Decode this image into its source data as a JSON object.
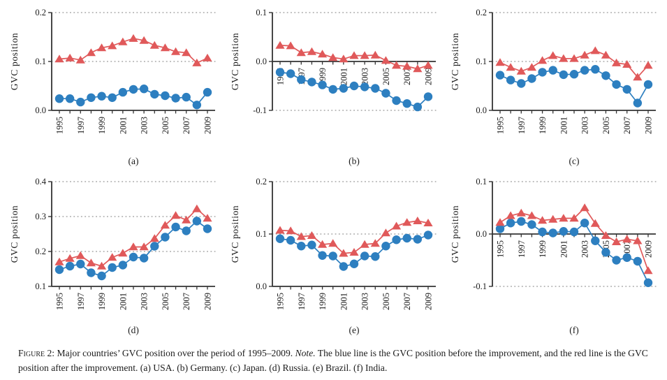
{
  "caption": {
    "label": "Figure 2:",
    "body": "Major countries’ GVC position over the period of 1995–2009.",
    "note_label": "Note.",
    "note_body": "The blue line is the GVC position before the improvement, and the red line is the GVC position after the improvement.",
    "panel_list": "(a) USA. (b) Germany. (c) Japan. (d) Russia. (e) Brazil. (f) India."
  },
  "colors": {
    "red": "#e0595a",
    "blue": "#2d7fc0",
    "axis": "#333333",
    "grid": "#959595",
    "text": "#1b1b1b"
  },
  "chart_data": [
    {
      "type": "line",
      "panel": "(a)",
      "country": "USA",
      "ylabel": "GVC position",
      "x": [
        1995,
        1996,
        1997,
        1998,
        1999,
        2000,
        2001,
        2002,
        2003,
        2004,
        2005,
        2006,
        2007,
        2008,
        2009
      ],
      "x_tick_labels": [
        "1995",
        "1997",
        "1999",
        "2001",
        "2003",
        "2005",
        "2007",
        "2009"
      ],
      "ylim": [
        0,
        0.2
      ],
      "yticks": [
        0,
        0.1,
        0.2
      ],
      "ytick_labels": [
        "0.0",
        "0.1",
        "0.2"
      ],
      "x_axis_at": 0,
      "grid": "dotted",
      "legend": "none",
      "series": [
        {
          "name": "GVC position after the improvement",
          "marker": "triangle",
          "color": "red",
          "values": [
            0.105,
            0.107,
            0.103,
            0.118,
            0.128,
            0.132,
            0.14,
            0.147,
            0.143,
            0.133,
            0.128,
            0.12,
            0.118,
            0.097,
            0.107
          ]
        },
        {
          "name": "GVC position before the improvement",
          "marker": "circle",
          "color": "blue",
          "values": [
            0.024,
            0.024,
            0.017,
            0.026,
            0.029,
            0.026,
            0.037,
            0.043,
            0.044,
            0.033,
            0.03,
            0.025,
            0.027,
            0.011,
            0.037
          ]
        }
      ]
    },
    {
      "type": "line",
      "panel": "(b)",
      "country": "Germany",
      "ylabel": "GVC position",
      "x": [
        1995,
        1996,
        1997,
        1998,
        1999,
        2000,
        2001,
        2002,
        2003,
        2004,
        2005,
        2006,
        2007,
        2008,
        2009
      ],
      "x_tick_labels": [
        "1995",
        "1997",
        "1999",
        "2001",
        "2003",
        "2005",
        "2007",
        "2009"
      ],
      "ylim": [
        -0.1,
        0.1
      ],
      "yticks": [
        -0.1,
        0,
        0.1
      ],
      "ytick_labels": [
        "-0.1",
        "0.0",
        "0.1"
      ],
      "x_axis_at": 0,
      "grid": "dotted",
      "legend": "none",
      "series": [
        {
          "name": "GVC position after the improvement",
          "marker": "triangle",
          "color": "red",
          "values": [
            0.033,
            0.032,
            0.018,
            0.02,
            0.015,
            0.008,
            0.005,
            0.012,
            0.012,
            0.013,
            0.002,
            -0.008,
            -0.01,
            -0.015,
            -0.008
          ]
        },
        {
          "name": "GVC position before the improvement",
          "marker": "circle",
          "color": "blue",
          "values": [
            -0.022,
            -0.025,
            -0.037,
            -0.042,
            -0.048,
            -0.057,
            -0.055,
            -0.05,
            -0.052,
            -0.055,
            -0.065,
            -0.08,
            -0.086,
            -0.093,
            -0.072
          ]
        }
      ]
    },
    {
      "type": "line",
      "panel": "(c)",
      "country": "Japan",
      "ylabel": "GVC position",
      "x": [
        1995,
        1996,
        1997,
        1998,
        1999,
        2000,
        2001,
        2002,
        2003,
        2004,
        2005,
        2006,
        2007,
        2008,
        2009
      ],
      "x_tick_labels": [
        "1995",
        "1997",
        "1999",
        "2001",
        "2003",
        "2005",
        "2007",
        "2009"
      ],
      "ylim": [
        0,
        0.2
      ],
      "yticks": [
        0,
        0.1,
        0.2
      ],
      "ytick_labels": [
        "0.0",
        "0.1",
        "0.2"
      ],
      "x_axis_at": 0,
      "grid": "dotted",
      "legend": "none",
      "series": [
        {
          "name": "GVC position after the improvement",
          "marker": "triangle",
          "color": "red",
          "values": [
            0.098,
            0.088,
            0.08,
            0.088,
            0.102,
            0.112,
            0.106,
            0.106,
            0.113,
            0.122,
            0.113,
            0.097,
            0.094,
            0.068,
            0.092
          ]
        },
        {
          "name": "GVC position before the improvement",
          "marker": "circle",
          "color": "blue",
          "values": [
            0.072,
            0.062,
            0.055,
            0.065,
            0.078,
            0.082,
            0.073,
            0.074,
            0.082,
            0.084,
            0.071,
            0.053,
            0.043,
            0.015,
            0.053
          ]
        }
      ]
    },
    {
      "type": "line",
      "panel": "(d)",
      "country": "Russia",
      "ylabel": "GVC position",
      "x": [
        1995,
        1996,
        1997,
        1998,
        1999,
        2000,
        2001,
        2002,
        2003,
        2004,
        2005,
        2006,
        2007,
        2008,
        2009
      ],
      "x_tick_labels": [
        "1995",
        "1997",
        "1999",
        "2001",
        "2003",
        "2005",
        "2007",
        "2009"
      ],
      "ylim": [
        0.1,
        0.4
      ],
      "yticks": [
        0.1,
        0.2,
        0.3,
        0.4
      ],
      "ytick_labels": [
        "0.1",
        "0.2",
        "0.3",
        "0.4"
      ],
      "x_axis_at": 0.1,
      "grid": "dotted",
      "legend": "none",
      "series": [
        {
          "name": "GVC position after the improvement",
          "marker": "triangle",
          "color": "red",
          "values": [
            0.17,
            0.18,
            0.188,
            0.167,
            0.158,
            0.183,
            0.195,
            0.213,
            0.213,
            0.237,
            0.275,
            0.303,
            0.29,
            0.322,
            0.295
          ]
        },
        {
          "name": "GVC position before the improvement",
          "marker": "circle",
          "color": "blue",
          "values": [
            0.148,
            0.158,
            0.164,
            0.139,
            0.13,
            0.154,
            0.161,
            0.184,
            0.181,
            0.215,
            0.241,
            0.27,
            0.259,
            0.287,
            0.265
          ]
        }
      ]
    },
    {
      "type": "line",
      "panel": "(e)",
      "country": "Brazil",
      "ylabel": "GVC position",
      "x": [
        1995,
        1996,
        1997,
        1998,
        1999,
        2000,
        2001,
        2002,
        2003,
        2004,
        2005,
        2006,
        2007,
        2008,
        2009
      ],
      "x_tick_labels": [
        "1995",
        "1997",
        "1999",
        "2001",
        "2003",
        "2005",
        "2007",
        "2009"
      ],
      "ylim": [
        0,
        0.2
      ],
      "yticks": [
        0,
        0.1,
        0.2
      ],
      "ytick_labels": [
        "0.0",
        "0.1",
        "0.2"
      ],
      "x_axis_at": 0,
      "grid": "dotted",
      "legend": "none",
      "series": [
        {
          "name": "GVC position after the improvement",
          "marker": "triangle",
          "color": "red",
          "values": [
            0.107,
            0.106,
            0.095,
            0.097,
            0.08,
            0.082,
            0.063,
            0.065,
            0.08,
            0.082,
            0.102,
            0.115,
            0.122,
            0.125,
            0.121
          ]
        },
        {
          "name": "GVC position before the improvement",
          "marker": "circle",
          "color": "blue",
          "values": [
            0.091,
            0.088,
            0.077,
            0.079,
            0.059,
            0.058,
            0.038,
            0.043,
            0.058,
            0.057,
            0.077,
            0.089,
            0.092,
            0.09,
            0.098
          ]
        }
      ]
    },
    {
      "type": "line",
      "panel": "(f)",
      "country": "India",
      "ylabel": "GVC position",
      "x": [
        1995,
        1996,
        1997,
        1998,
        1999,
        2000,
        2001,
        2002,
        2003,
        2004,
        2005,
        2006,
        2007,
        2008,
        2009
      ],
      "x_tick_labels": [
        "1995",
        "1997",
        "1999",
        "2001",
        "2003",
        "2005",
        "2007",
        "2009"
      ],
      "ylim": [
        -0.1,
        0.1
      ],
      "yticks": [
        -0.1,
        0,
        0.1
      ],
      "ytick_labels": [
        "-0.1",
        "0.0",
        "0.1"
      ],
      "x_axis_at": 0,
      "grid": "dotted",
      "legend": "none",
      "series": [
        {
          "name": "GVC position after the improvement",
          "marker": "triangle",
          "color": "red",
          "values": [
            0.022,
            0.035,
            0.04,
            0.035,
            0.026,
            0.028,
            0.03,
            0.03,
            0.05,
            0.02,
            -0.003,
            -0.015,
            -0.01,
            -0.013,
            -0.07
          ]
        },
        {
          "name": "GVC position before the improvement",
          "marker": "circle",
          "color": "blue",
          "values": [
            0.01,
            0.021,
            0.024,
            0.018,
            0.004,
            0.002,
            0.005,
            0.004,
            0.021,
            -0.013,
            -0.035,
            -0.05,
            -0.045,
            -0.052,
            -0.093
          ]
        }
      ]
    }
  ]
}
